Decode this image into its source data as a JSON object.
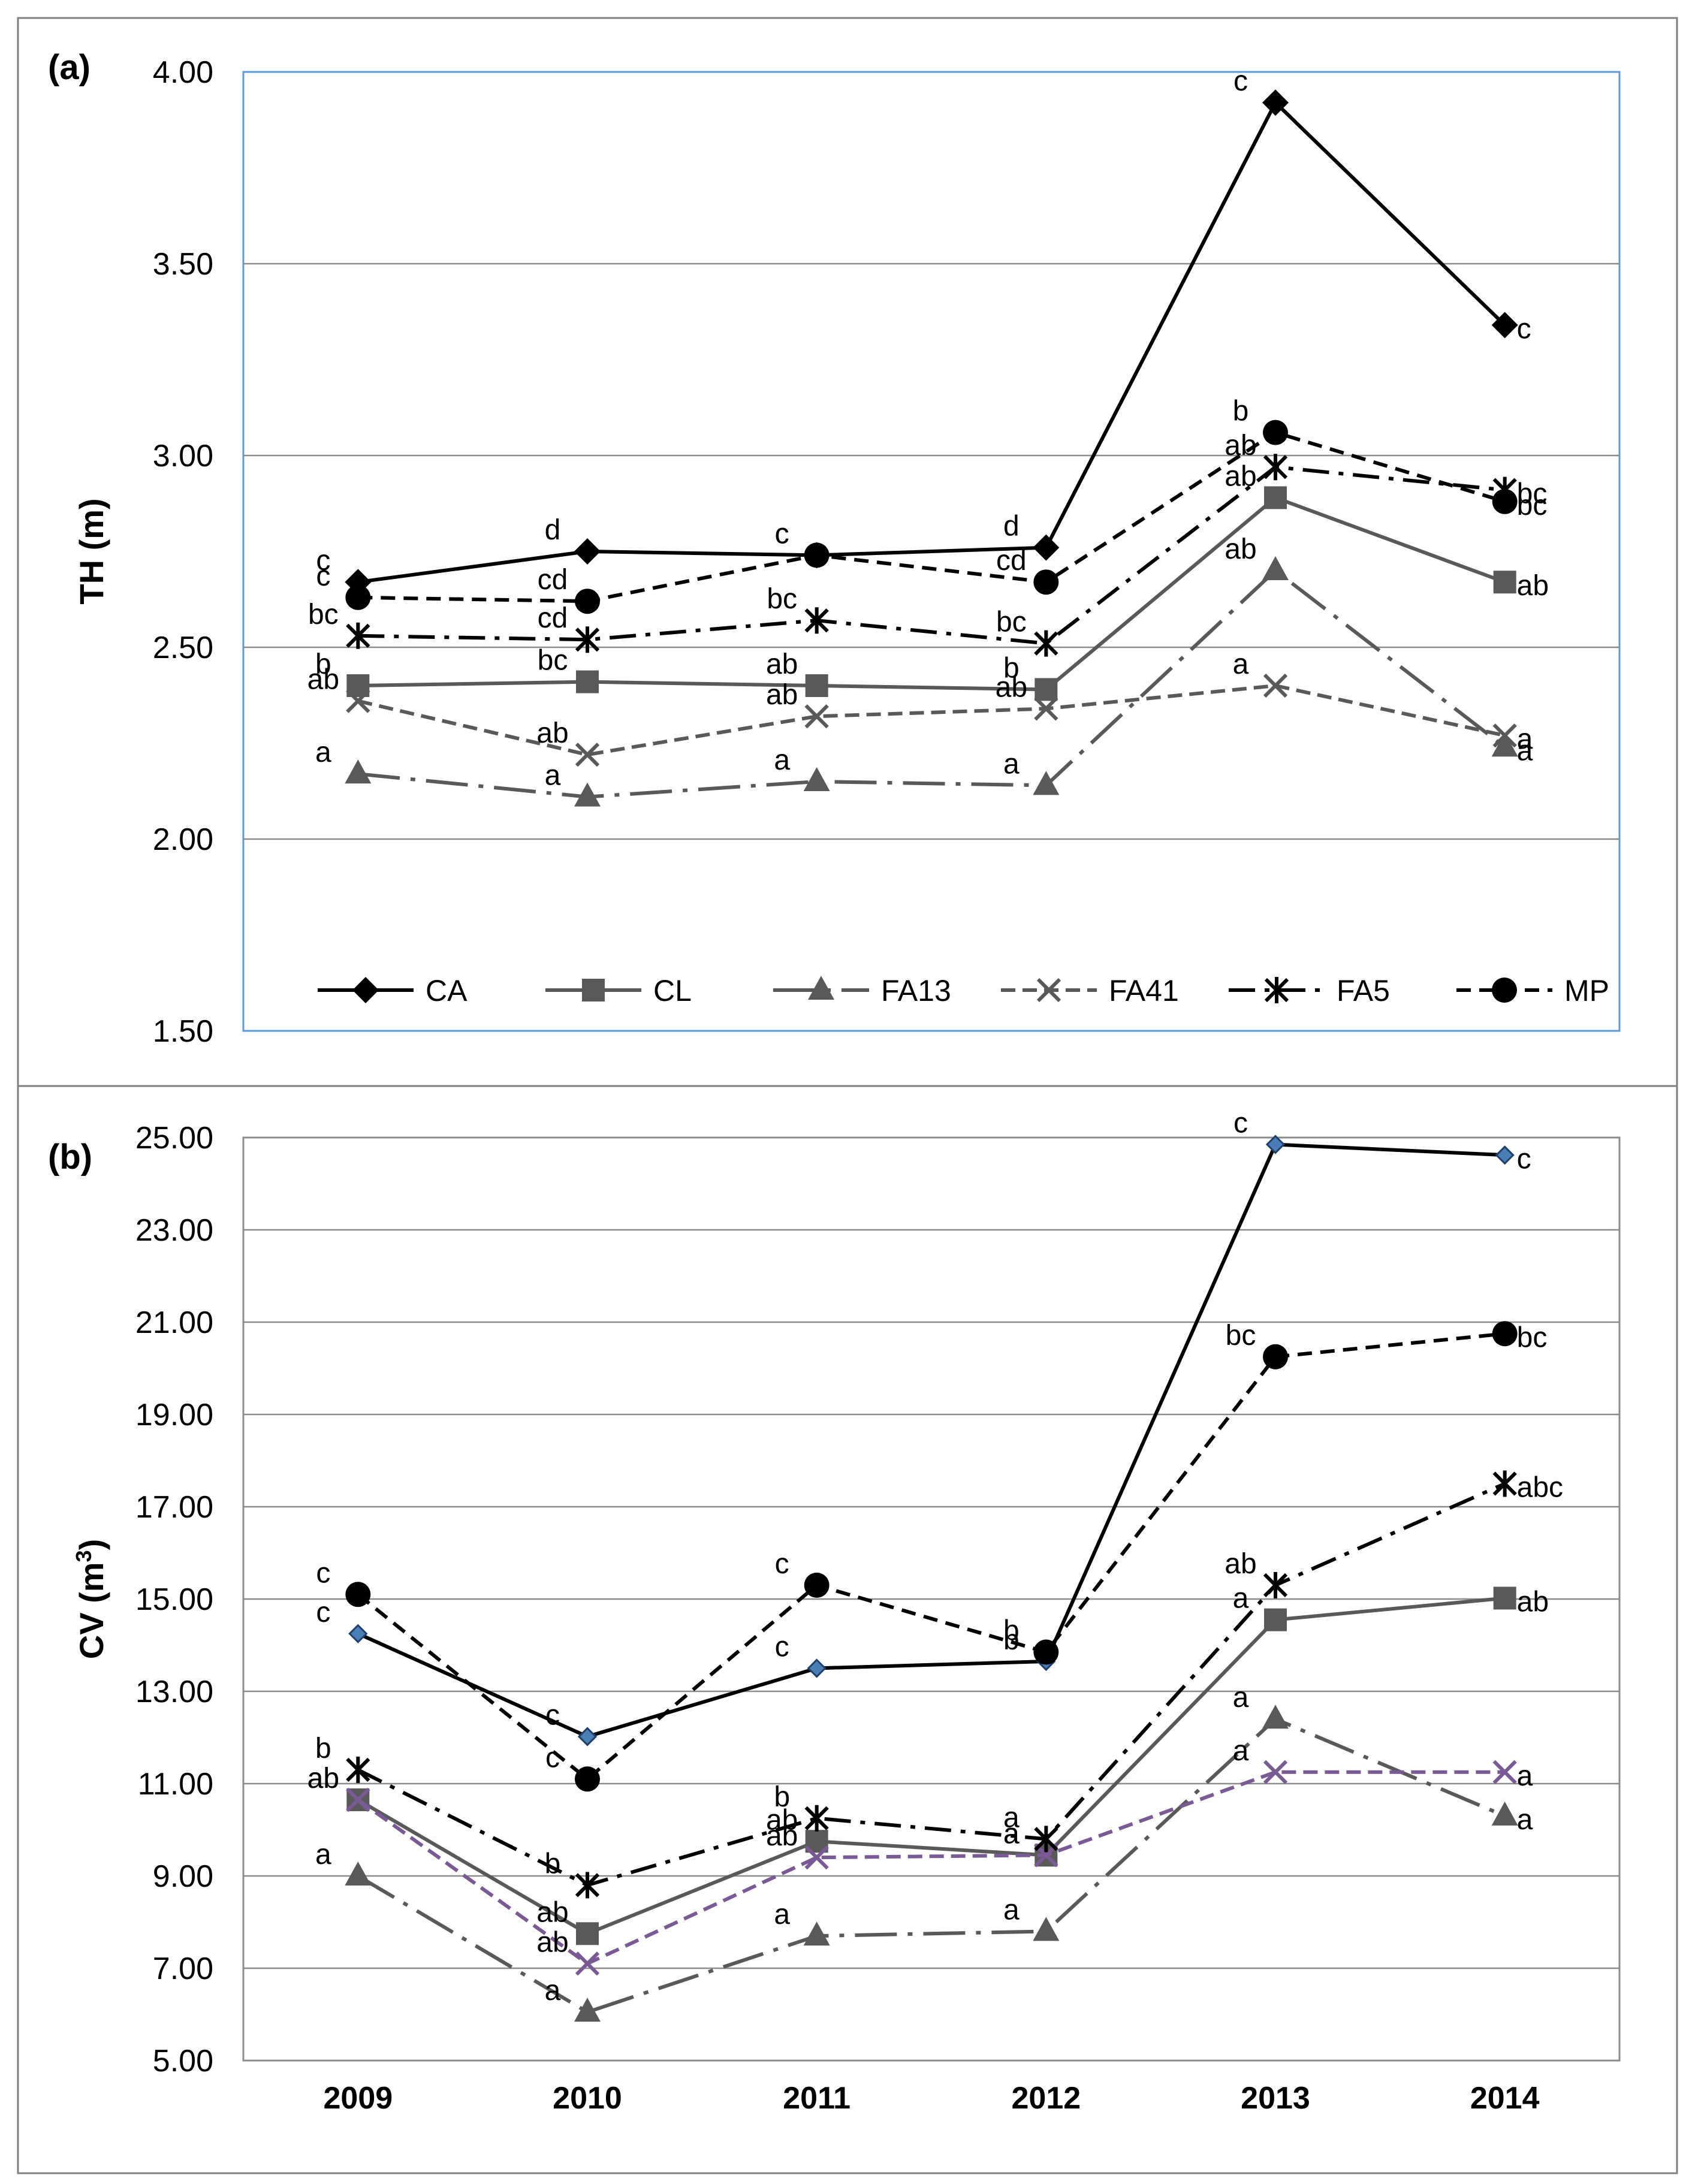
{
  "chart_data": [
    {
      "type": "line",
      "panel": "(a)",
      "ylabel": "TH (m)",
      "xlabel": "",
      "ylim": [
        1.5,
        4.0
      ],
      "yticks": [
        "4.00",
        "3.50",
        "3.00",
        "2.50",
        "2.00",
        "1.50"
      ],
      "ytick_values": [
        4.0,
        3.5,
        3.0,
        2.5,
        2.0,
        1.5
      ],
      "categories": [
        "2009",
        "2010",
        "2011",
        "2012",
        "2013",
        "2014"
      ],
      "show_xticks": false,
      "legend_position": "bottom",
      "series": [
        {
          "name": "CA",
          "color": "#000000",
          "dash": "",
          "marker": "diamond",
          "values": [
            2.67,
            2.75,
            2.74,
            2.76,
            3.92,
            3.34
          ],
          "labels": [
            "c",
            "d",
            "c",
            "d",
            "c",
            "c"
          ]
        },
        {
          "name": "CL",
          "color": "#595959",
          "dash": "",
          "marker": "square",
          "values": [
            2.4,
            2.41,
            2.4,
            2.39,
            2.89,
            2.67
          ],
          "labels": [
            "b",
            "bc",
            "ab",
            "b",
            "ab",
            "ab"
          ]
        },
        {
          "name": "FA13",
          "color": "#595959",
          "dash": "70,18,8,18",
          "marker": "triangle",
          "values": [
            2.17,
            2.11,
            2.15,
            2.14,
            2.7,
            2.24
          ],
          "labels": [
            "a",
            "a",
            "a",
            "a",
            "ab",
            "a"
          ]
        },
        {
          "name": "FA41",
          "color": "#595959",
          "dash": "24,12",
          "marker": "x",
          "values": [
            2.36,
            2.22,
            2.32,
            2.34,
            2.4,
            2.27
          ],
          "labels": [
            "ab",
            "ab",
            "ab",
            "ab",
            "a",
            "a"
          ]
        },
        {
          "name": "FA5",
          "color": "#000000",
          "dash": "44,16,8,16",
          "marker": "star",
          "values": [
            2.53,
            2.52,
            2.57,
            2.51,
            2.97,
            2.91
          ],
          "labels": [
            "bc",
            "cd",
            "bc",
            "bc",
            "ab",
            "bc"
          ]
        },
        {
          "name": "MP",
          "color": "#000000",
          "dash": "24,14",
          "marker": "circle",
          "values": [
            2.63,
            2.62,
            2.74,
            2.67,
            3.06,
            2.88
          ],
          "labels": [
            "c",
            "cd",
            "c",
            "cd",
            "b",
            "bc"
          ]
        }
      ]
    },
    {
      "type": "line",
      "panel": "(b)",
      "ylabel": "CV (m",
      "ylabel_sup": "3",
      "ylabel_end": ")",
      "xlabel": "",
      "ylim": [
        5.0,
        25.0
      ],
      "yticks": [
        "25.00",
        "23.00",
        "21.00",
        "19.00",
        "17.00",
        "15.00",
        "13.00",
        "11.00",
        "9.00",
        "7.00",
        "5.00"
      ],
      "ytick_values": [
        25,
        23,
        21,
        19,
        17,
        15,
        13,
        11,
        9,
        7,
        5
      ],
      "categories": [
        "2009",
        "2010",
        "2011",
        "2012",
        "2013",
        "2014"
      ],
      "show_xticks": true,
      "series": [
        {
          "name": "CA",
          "color": "#000000",
          "dash": "",
          "marker": "smalldiamond",
          "values": [
            14.25,
            12.02,
            13.5,
            13.65,
            24.85,
            24.62
          ],
          "labels": [
            "c",
            "c",
            "c",
            "b",
            "c",
            "c"
          ]
        },
        {
          "name": "CL",
          "color": "#595959",
          "dash": "",
          "marker": "square",
          "values": [
            10.65,
            7.75,
            9.75,
            9.45,
            14.55,
            15.02
          ],
          "labels": [
            "ab",
            "ab",
            "ab",
            "a",
            "a",
            "ab"
          ]
        },
        {
          "name": "FA13",
          "color": "#595959",
          "dash": "70,18,8,18",
          "marker": "triangle",
          "values": [
            9.0,
            6.05,
            7.7,
            7.8,
            12.4,
            10.3
          ],
          "labels": [
            "a",
            "a",
            "a",
            "a",
            "a",
            "a"
          ]
        },
        {
          "name": "FA41",
          "color": "#7a5a95",
          "dash": "24,12",
          "marker": "x",
          "values": [
            10.65,
            7.1,
            9.4,
            9.45,
            11.25,
            11.25
          ],
          "labels": [
            "ab",
            "ab",
            "ab",
            "a",
            "a",
            "a"
          ]
        },
        {
          "name": "FA5",
          "color": "#000000",
          "dash": "44,16,8,16",
          "marker": "star",
          "values": [
            11.3,
            8.8,
            10.25,
            9.8,
            15.3,
            17.5
          ],
          "labels": [
            "b",
            "b",
            "b",
            "a",
            "ab",
            "abc"
          ]
        },
        {
          "name": "MP",
          "color": "#000000",
          "dash": "24,14",
          "marker": "circle",
          "values": [
            15.1,
            11.1,
            15.3,
            13.85,
            20.25,
            20.75
          ],
          "labels": [
            "c",
            "c",
            "c",
            "b",
            "bc",
            "bc"
          ]
        }
      ]
    }
  ]
}
